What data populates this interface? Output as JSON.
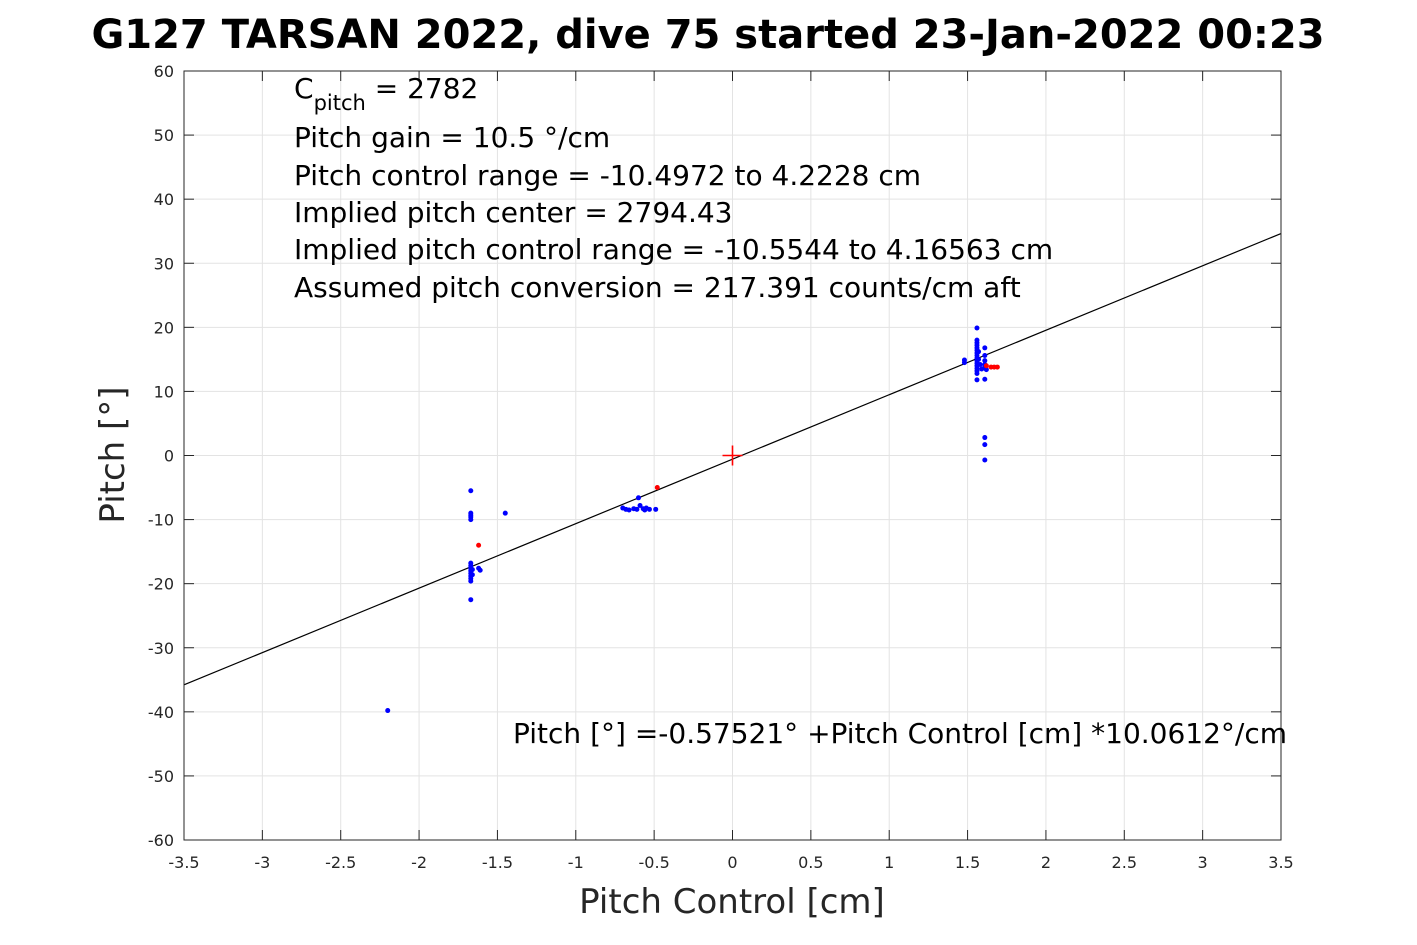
{
  "chart_data": {
    "type": "scatter",
    "title": "G127 TARSAN 2022, dive 75 started 23-Jan-2022 00:23",
    "xlabel": "Pitch Control [cm]",
    "ylabel": "Pitch [°]",
    "xlim": [
      -3.5,
      3.5
    ],
    "ylim": [
      -60,
      60
    ],
    "grid": true,
    "x_ticks": [
      "-3.5",
      "-3",
      "-2.5",
      "-2",
      "-1.5",
      "-1",
      "-0.5",
      "0",
      "0.5",
      "1",
      "1.5",
      "2",
      "2.5",
      "3",
      "3.5"
    ],
    "y_ticks": [
      "60",
      "50",
      "40",
      "30",
      "20",
      "10",
      "0",
      "-10",
      "-20",
      "-30",
      "-40",
      "-50",
      "-60"
    ],
    "annotations": {
      "c_pitch_base": "C",
      "c_pitch_sub": "pitch",
      "c_pitch_value": " = 2782",
      "line2": "Pitch gain = 10.5 °/cm",
      "line3": "Pitch control range = -10.4972 to 4.2228 cm",
      "line4": "Implied pitch center = 2794.43",
      "line5": "Implied pitch control range = -10.5544 to 4.16563 cm",
      "line6": "Assumed pitch conversion = 217.391 counts/cm aft",
      "fit_equation": "Pitch [°] =-0.57521° +Pitch Control [cm] *10.0612°/cm"
    },
    "fit_line": {
      "intercept": -0.57521,
      "slope": 10.0612,
      "color": "#000000"
    },
    "center_marker": {
      "x": 0,
      "y": 0,
      "color": "#ff0000"
    },
    "series": [
      {
        "color": "#0000ff",
        "points": [
          [
            -2.2,
            -39.8
          ],
          [
            -1.67,
            -5.5
          ],
          [
            -1.67,
            -9.0
          ],
          [
            -1.67,
            -9.3
          ],
          [
            -1.67,
            -9.6
          ],
          [
            -1.67,
            -10.0
          ],
          [
            -1.67,
            -16.8
          ],
          [
            -1.67,
            -17.2
          ],
          [
            -1.67,
            -17.6
          ],
          [
            -1.67,
            -18.0
          ],
          [
            -1.67,
            -18.4
          ],
          [
            -1.67,
            -18.8
          ],
          [
            -1.67,
            -19.2
          ],
          [
            -1.67,
            -19.6
          ],
          [
            -1.66,
            -17.8
          ],
          [
            -1.66,
            -18.6
          ],
          [
            -1.67,
            -22.5
          ],
          [
            -1.62,
            -17.6
          ],
          [
            -1.61,
            -17.9
          ],
          [
            -1.45,
            -9.0
          ],
          [
            -0.7,
            -8.2
          ],
          [
            -0.68,
            -8.4
          ],
          [
            -0.66,
            -8.5
          ],
          [
            -0.63,
            -8.3
          ],
          [
            -0.61,
            -8.4
          ],
          [
            -0.6,
            -6.6
          ],
          [
            -0.59,
            -7.8
          ],
          [
            -0.57,
            -8.3
          ],
          [
            -0.56,
            -8.5
          ],
          [
            -0.55,
            -8.2
          ],
          [
            -0.53,
            -8.4
          ],
          [
            -0.49,
            -8.4
          ],
          [
            1.48,
            14.5
          ],
          [
            1.48,
            14.9
          ],
          [
            1.56,
            11.8
          ],
          [
            1.56,
            12.8
          ],
          [
            1.56,
            13.2
          ],
          [
            1.56,
            13.6
          ],
          [
            1.56,
            14.0
          ],
          [
            1.56,
            14.4
          ],
          [
            1.56,
            14.8
          ],
          [
            1.56,
            15.2
          ],
          [
            1.56,
            15.6
          ],
          [
            1.56,
            16.0
          ],
          [
            1.56,
            16.4
          ],
          [
            1.56,
            16.8
          ],
          [
            1.56,
            17.2
          ],
          [
            1.56,
            17.6
          ],
          [
            1.56,
            18.0
          ],
          [
            1.56,
            19.9
          ],
          [
            1.57,
            15.0
          ],
          [
            1.57,
            16.2
          ],
          [
            1.58,
            14.2
          ],
          [
            1.59,
            13.5
          ],
          [
            1.61,
            11.9
          ],
          [
            1.61,
            13.8
          ],
          [
            1.61,
            14.2
          ],
          [
            1.61,
            14.8
          ],
          [
            1.61,
            15.6
          ],
          [
            1.61,
            16.8
          ],
          [
            1.62,
            13.4
          ],
          [
            1.61,
            2.8
          ],
          [
            1.61,
            1.7
          ],
          [
            1.61,
            -0.7
          ]
        ]
      },
      {
        "color": "#ff0000",
        "points": [
          [
            -1.62,
            -14.0
          ],
          [
            -0.48,
            -5.0
          ],
          [
            1.62,
            14.0
          ],
          [
            1.65,
            13.8
          ],
          [
            1.67,
            13.8
          ],
          [
            1.69,
            13.8
          ]
        ]
      }
    ]
  }
}
